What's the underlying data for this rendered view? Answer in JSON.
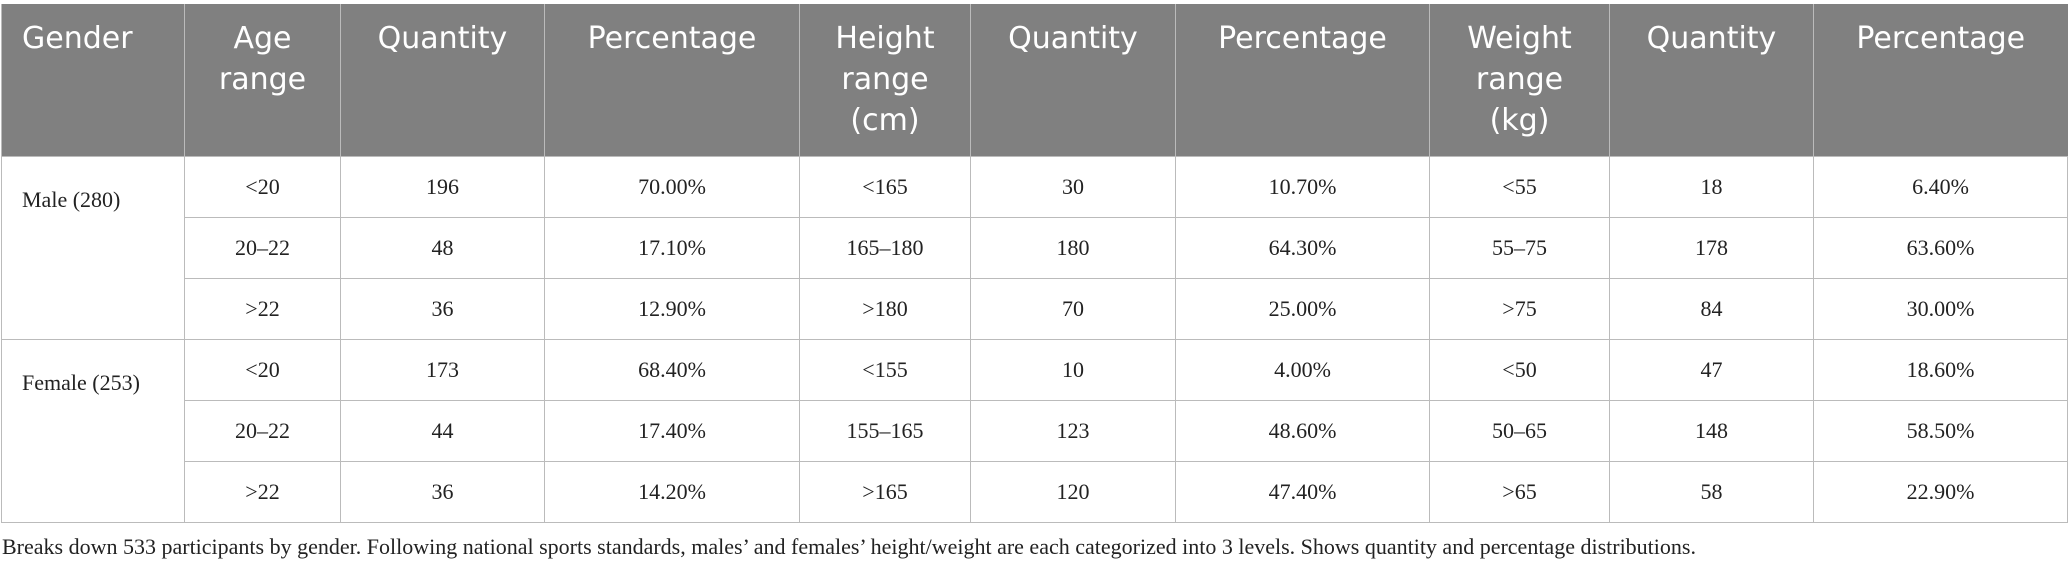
{
  "table": {
    "header": [
      "Gender",
      "Age range",
      "Quantity",
      "Percentage",
      "Height range (cm)",
      "Quantity",
      "Percentage",
      "Weight range (kg)",
      "Quantity",
      "Percentage"
    ],
    "groups": [
      {
        "gender": "Male (280)",
        "rows": [
          [
            "<20",
            "196",
            "70.00%",
            "<165",
            "30",
            "10.70%",
            "<55",
            "18",
            "6.40%"
          ],
          [
            "20–22",
            "48",
            "17.10%",
            "165–180",
            "180",
            "64.30%",
            "55–75",
            "178",
            "63.60%"
          ],
          [
            ">22",
            "36",
            "12.90%",
            ">180",
            "70",
            "25.00%",
            ">75",
            "84",
            "30.00%"
          ]
        ]
      },
      {
        "gender": "Female (253)",
        "rows": [
          [
            "<20",
            "173",
            "68.40%",
            "<155",
            "10",
            "4.00%",
            "<50",
            "47",
            "18.60%"
          ],
          [
            "20–22",
            "44",
            "17.40%",
            "155–165",
            "123",
            "48.60%",
            "50–65",
            "148",
            "58.50%"
          ],
          [
            ">22",
            "36",
            "14.20%",
            ">165",
            "120",
            "47.40%",
            ">65",
            "58",
            "22.90%"
          ]
        ]
      }
    ]
  },
  "caption": "Breaks down 533 participants by gender. Following national sports standards, males’ and females’ height/weight are each categorized into 3 levels. Shows quantity and percentage distributions."
}
